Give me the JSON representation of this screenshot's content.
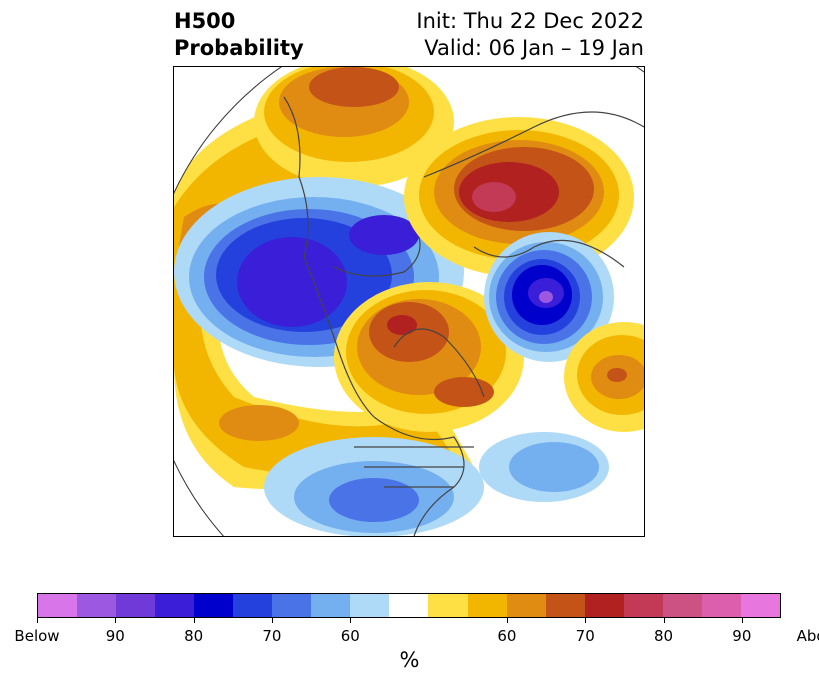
{
  "header": {
    "title_line1": "H500",
    "title_line2": "Probability",
    "init_text": "Init: Thu 22 Dec 2022",
    "valid_text": "Valid: 06 Jan – 19 Jan"
  },
  "colorbar": {
    "colors": [
      "#d875e8",
      "#9c58e0",
      "#6f3ad8",
      "#3a1ed8",
      "#0000cc",
      "#2541dd",
      "#4a73e8",
      "#74b0f0",
      "#aed9f7",
      "#ffffff",
      "#ffe044",
      "#f3b600",
      "#e08b12",
      "#c45318",
      "#b0211f",
      "#c23a55",
      "#cc5283",
      "#db5fac",
      "#e777df"
    ],
    "labels": [
      "Below",
      "90",
      "80",
      "70",
      "60",
      "60",
      "70",
      "80",
      "90",
      "Above"
    ],
    "units": "%"
  }
}
